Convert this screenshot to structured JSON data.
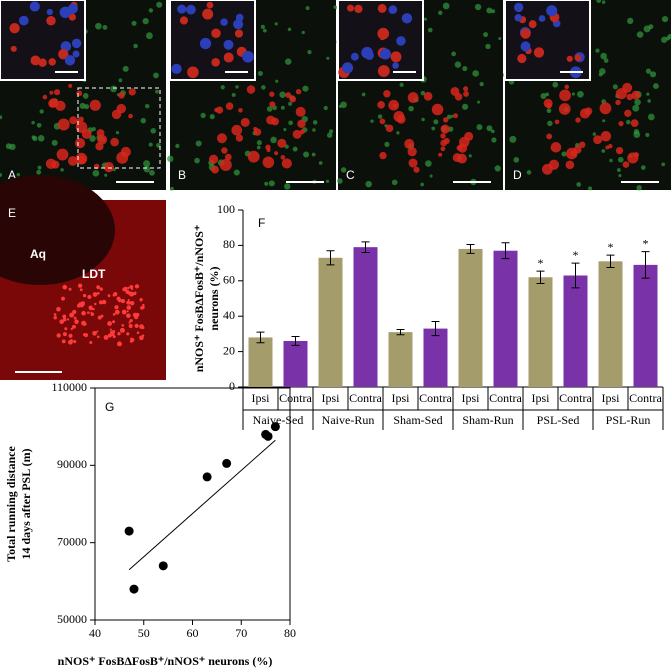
{
  "micrographs": [
    {
      "label": "A"
    },
    {
      "label": "B"
    },
    {
      "label": "C"
    },
    {
      "label": "D"
    },
    {
      "label": "E",
      "regions": [
        "Aq",
        "LDT"
      ]
    }
  ],
  "chart_data": [
    {
      "type": "bar",
      "panel": "F",
      "ylabel": [
        "nNOS⁺ FosBΔFosB⁺/nNOS⁺",
        "neurons (%)"
      ],
      "categories": [
        "Naive-Sed",
        "Naive-Run",
        "Sham-Sed",
        "Sham-Run",
        "PSL-Sed",
        "PSL-Run"
      ],
      "series": [
        {
          "name": "Ipsi",
          "color": "#a59c6c",
          "values": [
            28,
            73,
            31,
            78,
            62,
            71
          ],
          "errors": [
            3,
            4,
            1.5,
            2.5,
            3.5,
            3.5
          ]
        },
        {
          "name": "Contra",
          "color": "#7a32a8",
          "values": [
            26,
            79,
            33,
            77,
            63,
            69
          ],
          "errors": [
            2.5,
            3,
            4,
            4.5,
            7,
            7.5
          ]
        }
      ],
      "annotations": [
        {
          "text": "*",
          "series": 0,
          "category": 4
        },
        {
          "text": "*",
          "series": 1,
          "category": 4
        },
        {
          "text": "*",
          "series": 0,
          "category": 5
        },
        {
          "text": "*",
          "series": 1,
          "category": 5
        }
      ],
      "ylim": [
        0,
        100
      ],
      "yticks": [
        0,
        20,
        40,
        60,
        80,
        100
      ]
    },
    {
      "type": "scatter",
      "panel": "G",
      "xlabel": "nNOS⁺ FosBΔFosB⁺/nNOS⁺ neurons (%)",
      "ylabel": [
        "Total running distance",
        "14 days after PSL (m)"
      ],
      "x": [
        47,
        48,
        54,
        63,
        67,
        75,
        75.5,
        77
      ],
      "y": [
        73000,
        58000,
        64000,
        87000,
        90500,
        98000,
        97500,
        100000
      ],
      "color": "#000000",
      "trendline": {
        "x": [
          47,
          77
        ],
        "y": [
          63000,
          96500
        ]
      },
      "xlim": [
        40,
        80
      ],
      "xticks": [
        40,
        50,
        60,
        70,
        80
      ],
      "ylim": [
        50000,
        110000
      ],
      "yticks": [
        50000,
        70000,
        90000,
        110000
      ]
    }
  ]
}
